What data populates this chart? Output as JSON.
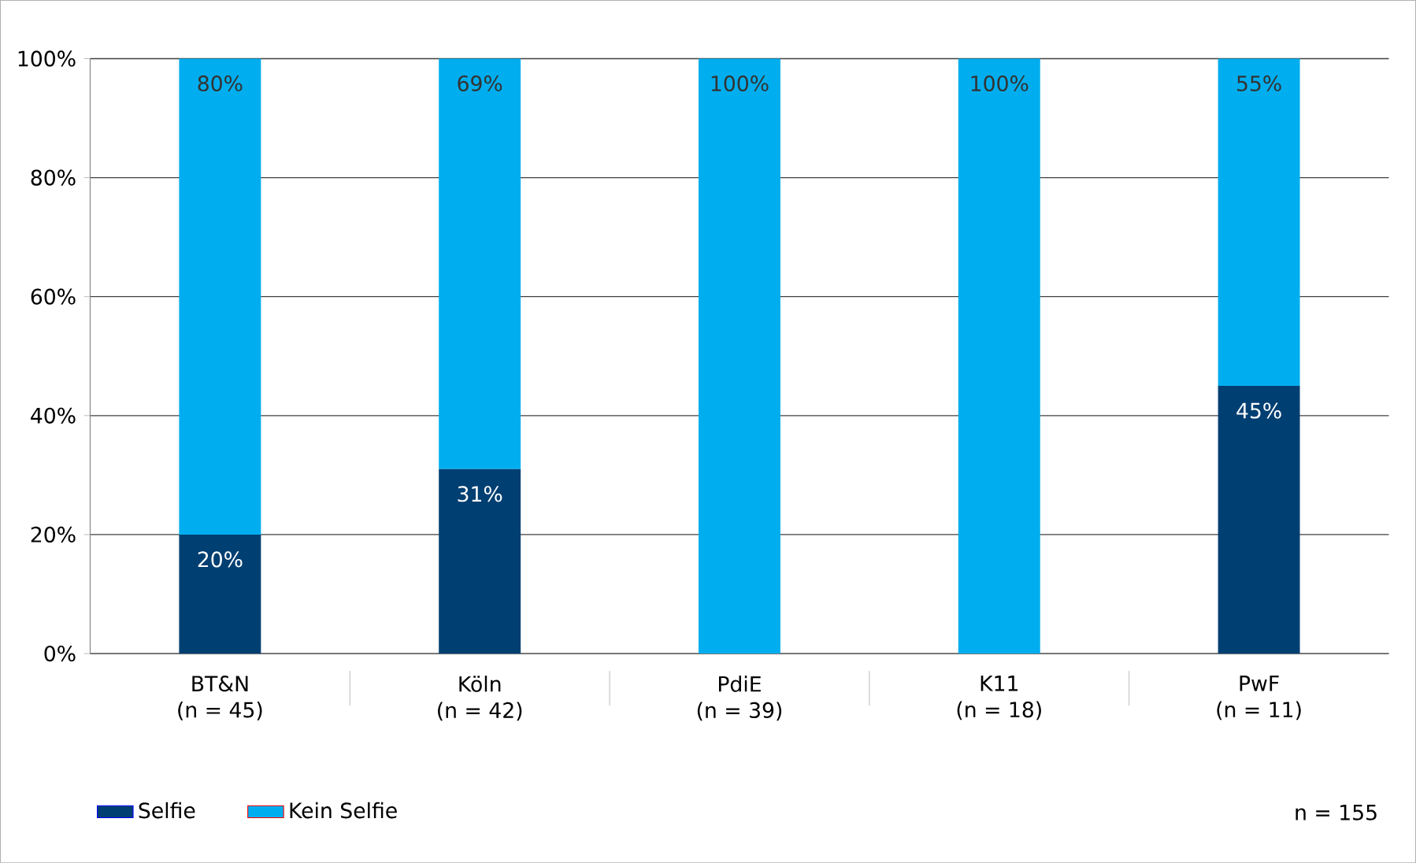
{
  "chart_data": {
    "type": "bar",
    "stacked": true,
    "categories": [
      "BT&N\n(n = 45)",
      "Köln\n(n = 42)",
      "PdiE\n(n = 39)",
      "K11\n(n = 18)",
      "PwF\n(n = 11)"
    ],
    "series": [
      {
        "name": "Selfie",
        "color": "#003f72",
        "values": [
          20,
          31,
          0,
          0,
          45
        ],
        "value_labels": [
          "20%",
          "31%",
          null,
          null,
          "45%"
        ]
      },
      {
        "name": "Kein Selfie",
        "color": "#00aeef",
        "values": [
          80,
          69,
          100,
          100,
          55
        ],
        "value_labels": [
          "80%",
          "69%",
          "100%",
          "100%",
          "55%"
        ]
      }
    ],
    "ylim": [
      0,
      100
    ],
    "yticks": [
      {
        "value": 0,
        "label": "0%"
      },
      {
        "value": 20,
        "label": "20%"
      },
      {
        "value": 40,
        "label": "40%"
      },
      {
        "value": 60,
        "label": "60%"
      },
      {
        "value": 80,
        "label": "80%"
      },
      {
        "value": 100,
        "label": "100%"
      }
    ],
    "grid": "y",
    "legend": "bottom left",
    "annotations": [
      "n = 155"
    ]
  }
}
